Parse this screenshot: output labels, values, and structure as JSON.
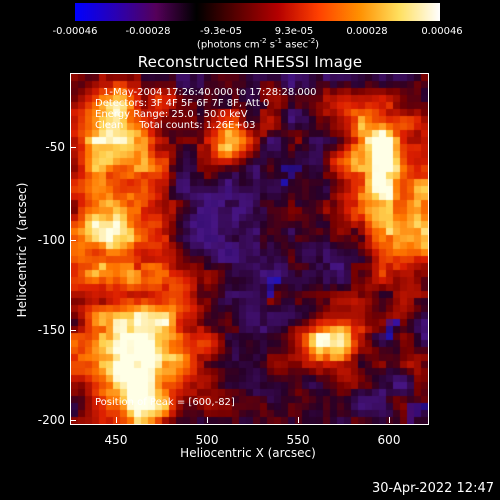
{
  "colorbar": {
    "tick_labels": [
      "-0.00046",
      "-0.00028",
      "-9.3e-05",
      "9.3e-05",
      "0.00028",
      "0.00046"
    ],
    "units_main": "(photons cm",
    "units_exp1": "-2",
    "units_mid": " s",
    "units_exp2": "-1",
    "units_end": " asec",
    "units_exp3": "-2",
    "units_close": ")",
    "colors": [
      "#0000ff",
      "#2a00b4",
      "#55005a",
      "#000000",
      "#5a0000",
      "#b40000",
      "#ff4000",
      "#ff9000",
      "#ffe060",
      "#ffffff"
    ]
  },
  "plot": {
    "title": "Reconstructed RHESSI Image",
    "annotations": [
      "1-May-2004 17:26:40.000 to 17:28:28.000",
      "Detectors: 3F 4F 5F 6F 7F 8F, Att 0",
      "Energy Range: 25.0 - 50.0 keV",
      "Clean     Total counts: 1.26E+03"
    ],
    "peak_label": "Position of Peak = [600,-82]",
    "xlabel": "Heliocentric X (arcsec)",
    "ylabel": "Heliocentric Y (arcsec)",
    "xticks": [
      "450",
      "500",
      "550",
      "600"
    ],
    "yticks": [
      "-50",
      "-100",
      "-150",
      "-200"
    ],
    "xrange": [
      427,
      622
    ],
    "yrange": [
      -202,
      -20
    ]
  },
  "footer": {
    "timestamp": "30-Apr-2022 12:47"
  }
}
